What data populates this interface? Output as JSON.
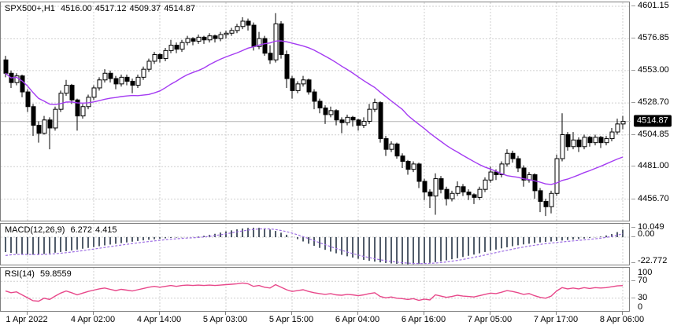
{
  "header": {
    "symbol_timeframe": "SPX500+,H1",
    "open": "4516.00",
    "high": "4517.12",
    "low": "4509.37",
    "close": "4514.87"
  },
  "indicators": {
    "macd": {
      "name": "MACD(12,26,9)",
      "value": "6.272",
      "signal": "4.415",
      "axis_labels": [
        "10.049",
        "0.00",
        "-22.772"
      ]
    },
    "rsi": {
      "name": "RSI(14)",
      "value": "59.8559",
      "axis_labels": [
        "100",
        "70",
        "30",
        "0"
      ],
      "levels": [
        70,
        30
      ]
    }
  },
  "colors": {
    "background": "#ffffff",
    "text": "#000000",
    "panel_border": "#7f7f7f",
    "grid": "#cfcfcf",
    "candle_up_fill": "#ffffff",
    "candle_down_fill": "#000000",
    "candle_outline": "#000000",
    "ma_line": "#a43bf2",
    "macd_histogram": "#3e4a5a",
    "macd_signal": "#9d6de3",
    "rsi_line": "#e8488a",
    "current_price_line": "#b3b3b3",
    "price_tag_bg": "#000000",
    "price_tag_text": "#ffffff"
  },
  "chart_data": {
    "type": "candlestick",
    "title": "SPX500+,H1 4516.00 4517.12 4509.37 4514.87",
    "current_price": 4514.87,
    "price_axis_labels": [
      4601.15,
      4576.85,
      4553.0,
      4528.7,
      4504.85,
      4481.0,
      4456.7
    ],
    "price_range": [
      4444.1,
      4604.1
    ],
    "ma_period": 24,
    "macd_range": [
      -22.772,
      10.049
    ],
    "rsi_range": [
      0,
      100
    ],
    "x_labels": [
      {
        "label": "1 Apr 2022",
        "bar": 4
      },
      {
        "label": "4 Apr 02:00",
        "bar": 16
      },
      {
        "label": "4 Apr 14:00",
        "bar": 28
      },
      {
        "label": "5 Apr 03:00",
        "bar": 40
      },
      {
        "label": "5 Apr 15:00",
        "bar": 52
      },
      {
        "label": "6 Apr 04:00",
        "bar": 64
      },
      {
        "label": "6 Apr 16:00",
        "bar": 76
      },
      {
        "label": "7 Apr 05:00",
        "bar": 88
      },
      {
        "label": "7 Apr 17:00",
        "bar": 100
      },
      {
        "label": "8 Apr 06:00",
        "bar": 112
      }
    ],
    "candles": [
      [
        4561,
        4564,
        4548,
        4551
      ],
      [
        4551,
        4553,
        4540,
        4544
      ],
      [
        4544,
        4551,
        4542,
        4549
      ],
      [
        4549,
        4550,
        4533,
        4537
      ],
      [
        4537,
        4539,
        4522,
        4526
      ],
      [
        4526,
        4528,
        4504,
        4512
      ],
      [
        4512,
        4515,
        4499,
        4506
      ],
      [
        4506,
        4519,
        4505,
        4516
      ],
      [
        4516,
        4518,
        4494,
        4510
      ],
      [
        4510,
        4526,
        4508,
        4524
      ],
      [
        4524,
        4538,
        4522,
        4536
      ],
      [
        4536,
        4546,
        4534,
        4542
      ],
      [
        4542,
        4543,
        4528,
        4531
      ],
      [
        4531,
        4532,
        4508,
        4519
      ],
      [
        4519,
        4528,
        4517,
        4526
      ],
      [
        4526,
        4535,
        4524,
        4533
      ],
      [
        4533,
        4542,
        4531,
        4540
      ],
      [
        4540,
        4548,
        4538,
        4546
      ],
      [
        4546,
        4554,
        4544,
        4551
      ],
      [
        4551,
        4553,
        4544,
        4547
      ],
      [
        4547,
        4549,
        4539,
        4543
      ],
      [
        4543,
        4550,
        4541,
        4548
      ],
      [
        4548,
        4550,
        4542,
        4545
      ],
      [
        4545,
        4547,
        4536,
        4542
      ],
      [
        4542,
        4550,
        4540,
        4548
      ],
      [
        4548,
        4556,
        4546,
        4554
      ],
      [
        4554,
        4562,
        4552,
        4560
      ],
      [
        4560,
        4567,
        4558,
        4565
      ],
      [
        4565,
        4566,
        4559,
        4562
      ],
      [
        4562,
        4570,
        4560,
        4568
      ],
      [
        4568,
        4576,
        4566,
        4572
      ],
      [
        4572,
        4574,
        4566,
        4569
      ],
      [
        4569,
        4576,
        4567,
        4574
      ],
      [
        4574,
        4579,
        4572,
        4577
      ],
      [
        4577,
        4578,
        4572,
        4575
      ],
      [
        4575,
        4580,
        4573,
        4578
      ],
      [
        4578,
        4579,
        4573,
        4576
      ],
      [
        4576,
        4581,
        4574,
        4579
      ],
      [
        4579,
        4580,
        4574,
        4577
      ],
      [
        4577,
        4582,
        4575,
        4580
      ],
      [
        4580,
        4583,
        4577,
        4581
      ],
      [
        4581,
        4585,
        4579,
        4583
      ],
      [
        4583,
        4588,
        4581,
        4586
      ],
      [
        4586,
        4593,
        4584,
        4590
      ],
      [
        4590,
        4592,
        4583,
        4587
      ],
      [
        4587,
        4589,
        4568,
        4571
      ],
      [
        4571,
        4582,
        4569,
        4577
      ],
      [
        4577,
        4579,
        4564,
        4566
      ],
      [
        4566,
        4572,
        4558,
        4561
      ],
      [
        4561,
        4596,
        4559,
        4588
      ],
      [
        4588,
        4590,
        4562,
        4565
      ],
      [
        4565,
        4568,
        4540,
        4547
      ],
      [
        4547,
        4549,
        4532,
        4538
      ],
      [
        4538,
        4545,
        4536,
        4543
      ],
      [
        4543,
        4549,
        4541,
        4546
      ],
      [
        4546,
        4547,
        4535,
        4537
      ],
      [
        4537,
        4539,
        4524,
        4530
      ],
      [
        4530,
        4532,
        4521,
        4525
      ],
      [
        4525,
        4527,
        4513,
        4520
      ],
      [
        4520,
        4526,
        4518,
        4523
      ],
      [
        4523,
        4524,
        4512,
        4516
      ],
      [
        4516,
        4518,
        4506,
        4514
      ],
      [
        4514,
        4520,
        4512,
        4518
      ],
      [
        4518,
        4519,
        4511,
        4516
      ],
      [
        4516,
        4517,
        4508,
        4512
      ],
      [
        4512,
        4518,
        4510,
        4515
      ],
      [
        4515,
        4528,
        4513,
        4524
      ],
      [
        4524,
        4532,
        4522,
        4529
      ],
      [
        4529,
        4530,
        4499,
        4502
      ],
      [
        4502,
        4504,
        4489,
        4494
      ],
      [
        4494,
        4500,
        4492,
        4498
      ],
      [
        4498,
        4499,
        4487,
        4489
      ],
      [
        4489,
        4491,
        4480,
        4485
      ],
      [
        4485,
        4486,
        4475,
        4479
      ],
      [
        4479,
        4485,
        4477,
        4483
      ],
      [
        4483,
        4484,
        4465,
        4470
      ],
      [
        4470,
        4472,
        4456,
        4462
      ],
      [
        4462,
        4464,
        4450,
        4459
      ],
      [
        4459,
        4476,
        4445,
        4472
      ],
      [
        4472,
        4474,
        4461,
        4464
      ],
      [
        4464,
        4466,
        4452,
        4457
      ],
      [
        4457,
        4463,
        4455,
        4461
      ],
      [
        4461,
        4470,
        4459,
        4466
      ],
      [
        4466,
        4468,
        4459,
        4462
      ],
      [
        4462,
        4464,
        4456,
        4460
      ],
      [
        4460,
        4461,
        4453,
        4458
      ],
      [
        4458,
        4466,
        4456,
        4464
      ],
      [
        4464,
        4473,
        4462,
        4471
      ],
      [
        4471,
        4481,
        4469,
        4477
      ],
      [
        4477,
        4479,
        4471,
        4475
      ],
      [
        4475,
        4485,
        4473,
        4483
      ],
      [
        4483,
        4494,
        4481,
        4491
      ],
      [
        4491,
        4493,
        4484,
        4487
      ],
      [
        4487,
        4489,
        4477,
        4480
      ],
      [
        4480,
        4482,
        4466,
        4471
      ],
      [
        4471,
        4477,
        4469,
        4475
      ],
      [
        4475,
        4476,
        4457,
        4463
      ],
      [
        4463,
        4465,
        4447,
        4455
      ],
      [
        4455,
        4457,
        4444,
        4451
      ],
      [
        4451,
        4463,
        4446,
        4461
      ],
      [
        4461,
        4490,
        4459,
        4487
      ],
      [
        4487,
        4521,
        4485,
        4505
      ],
      [
        4505,
        4507,
        4493,
        4496
      ],
      [
        4496,
        4507,
        4494,
        4501
      ],
      [
        4501,
        4503,
        4492,
        4496
      ],
      [
        4496,
        4505,
        4494,
        4503
      ],
      [
        4503,
        4504,
        4496,
        4499
      ],
      [
        4499,
        4505,
        4497,
        4503
      ],
      [
        4503,
        4504,
        4495,
        4499
      ],
      [
        4499,
        4504,
        4497,
        4502
      ],
      [
        4502,
        4510,
        4500,
        4507
      ],
      [
        4507,
        4517,
        4505,
        4513
      ],
      [
        4513,
        4519,
        4509,
        4514.9
      ]
    ],
    "macd_values": [
      -12.5,
      -13.2,
      -13.8,
      -14.3,
      -14.6,
      -14.7,
      -14.5,
      -14.1,
      -13.6,
      -13.0,
      -12.4,
      -11.8,
      -11.1,
      -10.4,
      -9.7,
      -9.0,
      -8.3,
      -7.6,
      -6.9,
      -6.2,
      -5.6,
      -5.0,
      -4.4,
      -3.8,
      -3.2,
      -2.7,
      -2.2,
      -1.8,
      -1.4,
      -1.0,
      -0.7,
      -0.4,
      -0.2,
      -0.1,
      0.1,
      0.5,
      1.1,
      1.9,
      2.8,
      3.8,
      4.8,
      5.7,
      6.5,
      7.2,
      7.7,
      7.9,
      7.8,
      7.3,
      6.4,
      5.2,
      3.7,
      2.0,
      0.2,
      -1.7,
      -3.6,
      -5.5,
      -7.3,
      -9.0,
      -10.6,
      -12.1,
      -13.5,
      -14.8,
      -16.0,
      -17.1,
      -18.1,
      -19.0,
      -19.8,
      -20.5,
      -21.1,
      -21.6,
      -22.0,
      -22.3,
      -22.6,
      -22.77,
      -22.6,
      -22.4,
      -22.0,
      -21.5,
      -20.9,
      -20.2,
      -19.4,
      -18.5,
      -17.6,
      -16.6,
      -15.6,
      -14.6,
      -13.5,
      -12.4,
      -11.4,
      -10.4,
      -9.4,
      -8.5,
      -7.6,
      -6.8,
      -6.1,
      -5.5,
      -4.9,
      -4.4,
      -4.0,
      -3.6,
      -3.2,
      -2.8,
      -2.4,
      -2.0,
      -1.6,
      -1.2,
      -0.7,
      -0.2,
      0.5,
      1.4,
      2.6,
      4.2,
      6.272
    ],
    "rsi_values": [
      47,
      43,
      45,
      38,
      31,
      24,
      23,
      30,
      27,
      35,
      42,
      47,
      43,
      38,
      42,
      46,
      49,
      52,
      54,
      51,
      48,
      51,
      49,
      47,
      50,
      53,
      56,
      58,
      56,
      58,
      60,
      58,
      60,
      61,
      60,
      61,
      60,
      61,
      60,
      61,
      62,
      63,
      64,
      66,
      64,
      58,
      60,
      56,
      54,
      62,
      56,
      50,
      46,
      48,
      50,
      46,
      43,
      41,
      39,
      41,
      38,
      37,
      39,
      38,
      36,
      38,
      41,
      43,
      34,
      31,
      33,
      30,
      29,
      27,
      29,
      25,
      28,
      26,
      38,
      35,
      32,
      34,
      37,
      35,
      34,
      33,
      36,
      39,
      42,
      41,
      44,
      48,
      46,
      43,
      39,
      41,
      36,
      32,
      30,
      35,
      47,
      55,
      52,
      54,
      52,
      55,
      53,
      55,
      54,
      55,
      57,
      59,
      59.86
    ]
  }
}
